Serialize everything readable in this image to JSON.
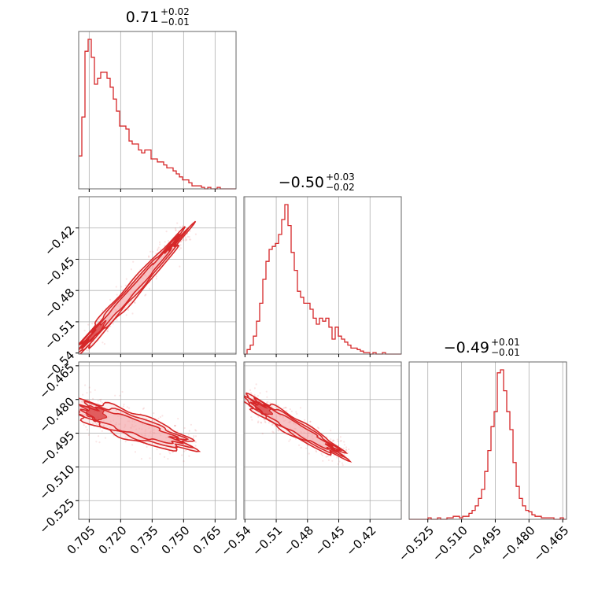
{
  "chart_data": {
    "type": "corner",
    "color": "#d62728",
    "fill_color": "#f4a6a8",
    "params": [
      {
        "median": 0.71,
        "plus": 0.02,
        "minus": 0.01,
        "title_main": "0.71",
        "title_sup": "+0.02",
        "title_sub": "−0.01",
        "range": [
          0.7,
          0.775
        ],
        "ticks": [
          0.705,
          0.72,
          0.735,
          0.75,
          0.765
        ],
        "tick_labels": [
          "0.705",
          "0.720",
          "0.735",
          "0.750",
          "0.765"
        ]
      },
      {
        "median": -0.5,
        "plus": 0.03,
        "minus": 0.02,
        "title_main": "−0.50",
        "title_sup": "+0.03",
        "title_sub": "−0.02",
        "range": [
          -0.541,
          -0.39
        ],
        "ticks": [
          -0.54,
          -0.51,
          -0.48,
          -0.45,
          -0.42
        ],
        "tick_labels": [
          "−0.54",
          "−0.51",
          "−0.48",
          "−0.45",
          "−0.42"
        ]
      },
      {
        "median": -0.49,
        "plus": 0.01,
        "minus": 0.01,
        "title_main": "−0.49",
        "title_sup": "+0.01",
        "title_sub": "−0.01",
        "range": [
          -0.5333,
          -0.4633
        ],
        "ticks": [
          -0.525,
          -0.51,
          -0.495,
          -0.48,
          -0.465
        ],
        "tick_labels": [
          "−0.525",
          "−0.510",
          "−0.495",
          "−0.480",
          "−0.465"
        ]
      }
    ],
    "histograms": [
      [
        0.22,
        0.48,
        0.92,
        1.0,
        0.88,
        0.7,
        0.74,
        0.78,
        0.78,
        0.74,
        0.68,
        0.6,
        0.52,
        0.42,
        0.42,
        0.4,
        0.32,
        0.3,
        0.3,
        0.26,
        0.24,
        0.26,
        0.26,
        0.2,
        0.2,
        0.18,
        0.18,
        0.16,
        0.14,
        0.14,
        0.12,
        0.1,
        0.08,
        0.06,
        0.06,
        0.04,
        0.02,
        0.02,
        0.02,
        0.01,
        0.0,
        0.01,
        0.0,
        0.0,
        0.01,
        0.0,
        0.0,
        0.0,
        0.0,
        0.0
      ],
      [
        0.0,
        0.03,
        0.06,
        0.12,
        0.22,
        0.34,
        0.5,
        0.62,
        0.7,
        0.72,
        0.74,
        0.8,
        0.9,
        1.0,
        0.86,
        0.68,
        0.56,
        0.42,
        0.38,
        0.34,
        0.34,
        0.3,
        0.24,
        0.2,
        0.24,
        0.22,
        0.24,
        0.18,
        0.1,
        0.18,
        0.12,
        0.1,
        0.08,
        0.06,
        0.04,
        0.04,
        0.03,
        0.02,
        0.01,
        0.01,
        0.0,
        0.01,
        0.0,
        0.0,
        0.01,
        0.0,
        0.0,
        0.0,
        0.0,
        0.0
      ],
      [
        0.0,
        0.0,
        0.0,
        0.0,
        0.0,
        0.0,
        0.01,
        0.0,
        0.0,
        0.01,
        0.0,
        0.0,
        0.01,
        0.01,
        0.02,
        0.02,
        0.01,
        0.02,
        0.02,
        0.04,
        0.06,
        0.09,
        0.14,
        0.2,
        0.32,
        0.46,
        0.62,
        0.72,
        0.98,
        1.0,
        0.86,
        0.72,
        0.6,
        0.38,
        0.22,
        0.14,
        0.09,
        0.06,
        0.05,
        0.03,
        0.02,
        0.02,
        0.01,
        0.01,
        0.01,
        0.01,
        0.0,
        0.0,
        0.01,
        0.0
      ]
    ]
  }
}
